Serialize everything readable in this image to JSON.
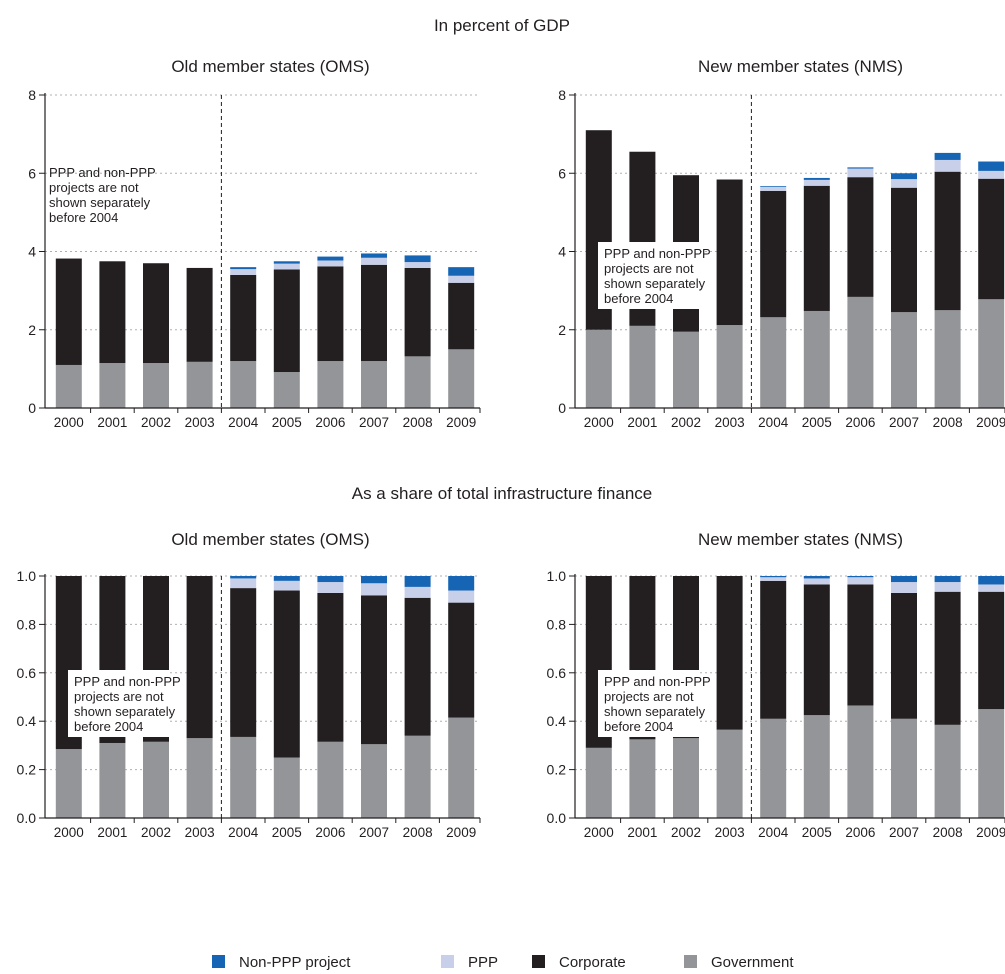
{
  "section_titles": [
    "In percent of GDP",
    "As a share of total infrastructure finance"
  ],
  "colors": {
    "Government": "#939598",
    "Corporate": "#231f20",
    "PPP": "#c8cfe8",
    "Non-PPP project": "#1565b4"
  },
  "legend": [
    {
      "name": "Non-PPP project",
      "color": "#1565b4"
    },
    {
      "name": "PPP",
      "color": "#c8cfe8"
    },
    {
      "name": "Corporate",
      "color": "#231f20"
    },
    {
      "name": "Government",
      "color": "#939598"
    }
  ],
  "chart_data": [
    {
      "type": "bar",
      "stacked": true,
      "section": "In percent of GDP",
      "title": "Old member states (OMS)",
      "categories": [
        "2000",
        "2001",
        "2002",
        "2003",
        "2004",
        "2005",
        "2006",
        "2007",
        "2008",
        "2009"
      ],
      "ylim": [
        0,
        8
      ],
      "yticks": [
        "0",
        "2",
        "4",
        "6",
        "8"
      ],
      "grid": true,
      "divider_after": "2003",
      "note": [
        "PPP and non-PPP",
        "projects are not",
        "shown separately",
        "before 2004"
      ],
      "series": [
        {
          "name": "Government",
          "values": [
            1.1,
            1.15,
            1.15,
            1.18,
            1.2,
            0.92,
            1.2,
            1.2,
            1.32,
            1.5
          ]
        },
        {
          "name": "Corporate",
          "values": [
            2.72,
            2.6,
            2.55,
            2.4,
            2.2,
            2.62,
            2.42,
            2.46,
            2.26,
            1.7
          ]
        },
        {
          "name": "PPP",
          "values": [
            0,
            0,
            0,
            0,
            0.15,
            0.15,
            0.15,
            0.18,
            0.15,
            0.18
          ]
        },
        {
          "name": "Non-PPP project",
          "values": [
            0,
            0,
            0,
            0,
            0.05,
            0.06,
            0.1,
            0.11,
            0.17,
            0.22
          ]
        }
      ]
    },
    {
      "type": "bar",
      "stacked": true,
      "section": "In percent of GDP",
      "title": "New member states (NMS)",
      "categories": [
        "2000",
        "2001",
        "2002",
        "2003",
        "2004",
        "2005",
        "2006",
        "2007",
        "2008",
        "2009"
      ],
      "ylim": [
        0,
        8
      ],
      "yticks": [
        "0",
        "2",
        "4",
        "6",
        "8"
      ],
      "grid": true,
      "divider_after": "2003",
      "note": [
        "PPP and non-PPP",
        "projects are not",
        "shown separately",
        "before 2004"
      ],
      "series": [
        {
          "name": "Government",
          "values": [
            2.0,
            2.1,
            1.95,
            2.12,
            2.32,
            2.48,
            2.84,
            2.45,
            2.5,
            2.78
          ]
        },
        {
          "name": "Corporate",
          "values": [
            5.1,
            4.45,
            4.0,
            3.72,
            3.23,
            3.2,
            3.06,
            3.18,
            3.54,
            3.08
          ]
        },
        {
          "name": "PPP",
          "values": [
            0,
            0,
            0,
            0,
            0.1,
            0.15,
            0.22,
            0.22,
            0.3,
            0.2
          ]
        },
        {
          "name": "Non-PPP project",
          "values": [
            0,
            0,
            0,
            0,
            0.02,
            0.05,
            0.03,
            0.15,
            0.18,
            0.24
          ]
        }
      ]
    },
    {
      "type": "bar",
      "stacked": true,
      "section": "As a share of total infrastructure finance",
      "title": "Old member states (OMS)",
      "categories": [
        "2000",
        "2001",
        "2002",
        "2003",
        "2004",
        "2005",
        "2006",
        "2007",
        "2008",
        "2009"
      ],
      "ylim": [
        0,
        1
      ],
      "yticks": [
        "0.0",
        "0.2",
        "0.4",
        "0.6",
        "0.8",
        "1.0"
      ],
      "grid": true,
      "divider_after": "2003",
      "note": [
        "PPP and non-PPP",
        "projects are not",
        "shown separately",
        "before 2004"
      ],
      "series": [
        {
          "name": "Government",
          "values": [
            0.285,
            0.31,
            0.315,
            0.33,
            0.335,
            0.25,
            0.315,
            0.305,
            0.34,
            0.415
          ]
        },
        {
          "name": "Corporate",
          "values": [
            0.715,
            0.69,
            0.685,
            0.67,
            0.615,
            0.69,
            0.615,
            0.615,
            0.57,
            0.475
          ]
        },
        {
          "name": "PPP",
          "values": [
            0,
            0,
            0,
            0,
            0.04,
            0.04,
            0.045,
            0.05,
            0.045,
            0.05
          ]
        },
        {
          "name": "Non-PPP project",
          "values": [
            0,
            0,
            0,
            0,
            0.01,
            0.02,
            0.025,
            0.03,
            0.045,
            0.06
          ]
        }
      ]
    },
    {
      "type": "bar",
      "stacked": true,
      "section": "As a share of total infrastructure finance",
      "title": "New member states (NMS)",
      "categories": [
        "2000",
        "2001",
        "2002",
        "2003",
        "2004",
        "2005",
        "2006",
        "2007",
        "2008",
        "2009"
      ],
      "ylim": [
        0,
        1
      ],
      "yticks": [
        "0.0",
        "0.2",
        "0.4",
        "0.6",
        "0.8",
        "1.0"
      ],
      "grid": true,
      "divider_after": "2003",
      "note": [
        "PPP and non-PPP",
        "projects are not",
        "shown separately",
        "before 2004"
      ],
      "series": [
        {
          "name": "Government",
          "values": [
            0.29,
            0.325,
            0.33,
            0.365,
            0.41,
            0.425,
            0.465,
            0.41,
            0.385,
            0.45
          ]
        },
        {
          "name": "Corporate",
          "values": [
            0.71,
            0.675,
            0.67,
            0.635,
            0.57,
            0.54,
            0.5,
            0.52,
            0.55,
            0.485
          ]
        },
        {
          "name": "PPP",
          "values": [
            0,
            0,
            0,
            0,
            0.015,
            0.025,
            0.03,
            0.045,
            0.04,
            0.03
          ]
        },
        {
          "name": "Non-PPP project",
          "values": [
            0,
            0,
            0,
            0,
            0.005,
            0.01,
            0.005,
            0.025,
            0.025,
            0.035
          ]
        }
      ]
    }
  ]
}
